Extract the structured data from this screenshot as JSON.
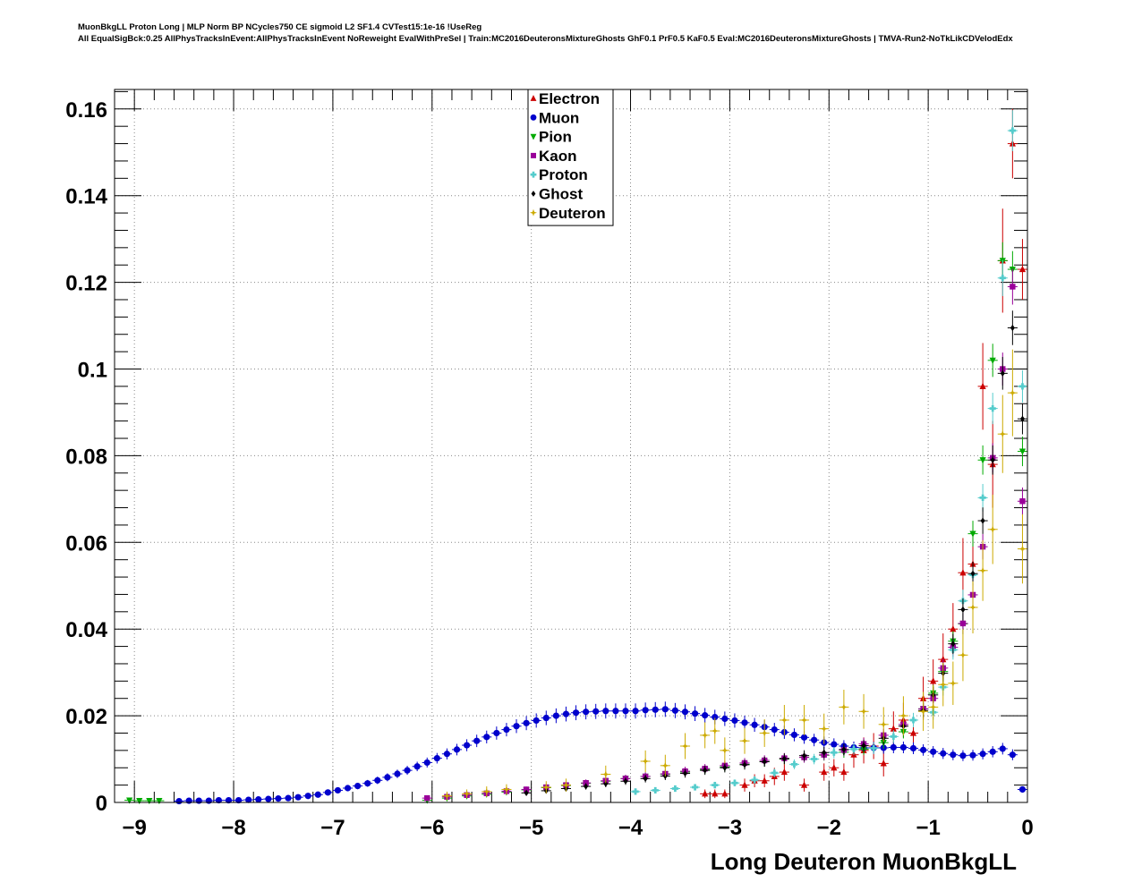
{
  "header": {
    "line1": "MuonBkgLL Proton Long | MLP Norm BP NCycles750 CE sigmoid L2 SF1.4 CVTest15:1e-16 !UseReg",
    "line2": "All EqualSigBck:0.25 AllPhysTracksInEvent:AllPhysTracksInEvent NoReweight EvalWithPreSel | Train:MC2016DeuteronsMixtureGhosts GhF0.1 PrF0.5 KaF0.5 Eval:MC2016DeuteronsMixtureGhosts | TMVA-Run2-NoTkLikCDVelodEdx"
  },
  "chart_data": {
    "type": "scatter",
    "title": "",
    "xlabel": "Long Deuteron MuonBkgLL",
    "ylabel": "",
    "xlim": [
      -9.2,
      0
    ],
    "ylim": [
      0,
      0.1645
    ],
    "grid": true,
    "legend_position": "top-center",
    "x_ticks": [
      -9,
      -8,
      -7,
      -6,
      -5,
      -4,
      -3,
      -2,
      -1,
      0
    ],
    "x_tick_labels": [
      "−9",
      "−8",
      "−7",
      "−6",
      "−5",
      "−4",
      "−3",
      "−2",
      "−1",
      "0"
    ],
    "y_ticks": [
      0,
      0.02,
      0.04,
      0.06,
      0.08,
      0.1,
      0.12,
      0.14,
      0.16
    ],
    "y_tick_labels": [
      "0",
      "0.02",
      "0.04",
      "0.06",
      "0.08",
      "0.1",
      "0.12",
      "0.14",
      "0.16"
    ],
    "series": [
      {
        "name": "Electron",
        "color": "#cc0000",
        "marker": "triangle-up",
        "x": [
          -3.25,
          -3.15,
          -3.05,
          -2.85,
          -2.75,
          -2.65,
          -2.55,
          -2.45,
          -2.25,
          -2.05,
          -1.95,
          -1.85,
          -1.75,
          -1.65,
          -1.55,
          -1.45,
          -1.35,
          -1.25,
          -1.15,
          -1.05,
          -0.95,
          -0.85,
          -0.75,
          -0.65,
          -0.55,
          -0.45,
          -0.35,
          -0.25,
          -0.15,
          -0.05
        ],
        "y": [
          0.002,
          0.002,
          0.002,
          0.004,
          0.005,
          0.005,
          0.006,
          0.007,
          0.004,
          0.007,
          0.008,
          0.007,
          0.011,
          0.012,
          0.013,
          0.009,
          0.017,
          0.019,
          0.016,
          0.024,
          0.028,
          0.033,
          0.04,
          0.053,
          0.055,
          0.096,
          0.078,
          0.125,
          0.152,
          0.123
        ],
        "err": [
          0.001,
          0.001,
          0.001,
          0.0015,
          0.0015,
          0.0015,
          0.002,
          0.002,
          0.0015,
          0.002,
          0.002,
          0.002,
          0.003,
          0.003,
          0.003,
          0.003,
          0.004,
          0.004,
          0.004,
          0.005,
          0.005,
          0.006,
          0.006,
          0.008,
          0.008,
          0.01,
          0.01,
          0.012,
          0.008,
          0.007
        ]
      },
      {
        "name": "Muon",
        "color": "#0000cc",
        "marker": "circle",
        "x": [
          -8.55,
          -8.45,
          -8.35,
          -8.25,
          -8.15,
          -8.05,
          -7.95,
          -7.85,
          -7.75,
          -7.65,
          -7.55,
          -7.45,
          -7.35,
          -7.25,
          -7.15,
          -7.05,
          -6.95,
          -6.85,
          -6.75,
          -6.65,
          -6.55,
          -6.45,
          -6.35,
          -6.25,
          -6.15,
          -6.05,
          -5.95,
          -5.85,
          -5.75,
          -5.65,
          -5.55,
          -5.45,
          -5.35,
          -5.25,
          -5.15,
          -5.05,
          -4.95,
          -4.85,
          -4.75,
          -4.65,
          -4.55,
          -4.45,
          -4.35,
          -4.25,
          -4.15,
          -4.05,
          -3.95,
          -3.85,
          -3.75,
          -3.65,
          -3.55,
          -3.45,
          -3.35,
          -3.25,
          -3.15,
          -3.05,
          -2.95,
          -2.85,
          -2.75,
          -2.65,
          -2.55,
          -2.45,
          -2.35,
          -2.25,
          -2.15,
          -2.05,
          -1.95,
          -1.85,
          -1.75,
          -1.65,
          -1.55,
          -1.45,
          -1.35,
          -1.25,
          -1.15,
          -1.05,
          -0.95,
          -0.85,
          -0.75,
          -0.65,
          -0.55,
          -0.45,
          -0.35,
          -0.25,
          -0.15,
          -0.05
        ],
        "y": [
          0.0003,
          0.0004,
          0.0004,
          0.0004,
          0.0005,
          0.0005,
          0.0005,
          0.0006,
          0.0007,
          0.0008,
          0.0009,
          0.001,
          0.0012,
          0.0015,
          0.0018,
          0.0023,
          0.0028,
          0.0033,
          0.0038,
          0.0044,
          0.0051,
          0.0058,
          0.0066,
          0.0074,
          0.0083,
          0.0092,
          0.0102,
          0.0112,
          0.0122,
          0.0132,
          0.0142,
          0.0151,
          0.016,
          0.0168,
          0.0176,
          0.0183,
          0.0189,
          0.0195,
          0.02,
          0.0204,
          0.0207,
          0.0209,
          0.021,
          0.0211,
          0.0211,
          0.0211,
          0.0211,
          0.0213,
          0.0214,
          0.0215,
          0.0212,
          0.0209,
          0.0205,
          0.0201,
          0.0197,
          0.0193,
          0.0189,
          0.0184,
          0.0179,
          0.0174,
          0.0168,
          0.0162,
          0.0156,
          0.015,
          0.0144,
          0.0138,
          0.0134,
          0.013,
          0.0127,
          0.0126,
          0.0126,
          0.0126,
          0.0127,
          0.0127,
          0.0125,
          0.0121,
          0.0117,
          0.0113,
          0.011,
          0.0108,
          0.0109,
          0.0112,
          0.0117,
          0.0124,
          0.011,
          0.003
        ],
        "err": []
      },
      {
        "name": "Pion",
        "color": "#00aa00",
        "marker": "triangle-down",
        "x": [
          -9.05,
          -8.95,
          -8.85,
          -8.75,
          -6.05,
          -5.85,
          -5.65,
          -5.45,
          -5.25,
          -5.05,
          -4.85,
          -4.65,
          -4.45,
          -4.25,
          -4.05,
          -3.85,
          -3.65,
          -3.45,
          -3.25,
          -3.05,
          -2.85,
          -2.65,
          -2.45,
          -2.25,
          -2.05,
          -1.85,
          -1.65,
          -1.45,
          -1.25,
          -1.05,
          -0.95,
          -0.85,
          -0.75,
          -0.65,
          -0.55,
          -0.45,
          -0.35,
          -0.25,
          -0.15,
          -0.05
        ],
        "y": [
          0.0005,
          0.0004,
          0.0004,
          0.0004,
          0.0005,
          0.001,
          0.0015,
          0.0019,
          0.0024,
          0.0029,
          0.0034,
          0.0039,
          0.0044,
          0.0049,
          0.0055,
          0.006,
          0.0065,
          0.007,
          0.0076,
          0.0082,
          0.0088,
          0.0094,
          0.01,
          0.0104,
          0.0109,
          0.0116,
          0.0123,
          0.0138,
          0.0163,
          0.0216,
          0.0252,
          0.0302,
          0.0372,
          0.0412,
          0.062,
          0.079,
          0.102,
          0.125,
          0.123,
          0.081
        ],
        "err": []
      },
      {
        "name": "Kaon",
        "color": "#990099",
        "marker": "square",
        "x": [
          -6.05,
          -5.85,
          -5.65,
          -5.45,
          -5.25,
          -5.05,
          -4.85,
          -4.65,
          -4.45,
          -4.25,
          -4.05,
          -3.85,
          -3.65,
          -3.45,
          -3.25,
          -3.05,
          -2.85,
          -2.65,
          -2.45,
          -2.25,
          -2.05,
          -1.85,
          -1.65,
          -1.45,
          -1.25,
          -1.05,
          -0.95,
          -0.85,
          -0.75,
          -0.65,
          -0.55,
          -0.45,
          -0.35,
          -0.25,
          -0.15,
          -0.05
        ],
        "y": [
          0.001,
          0.0013,
          0.0017,
          0.0021,
          0.0026,
          0.003,
          0.0035,
          0.004,
          0.0045,
          0.005,
          0.0055,
          0.006,
          0.0066,
          0.0072,
          0.0078,
          0.0085,
          0.0091,
          0.0097,
          0.0102,
          0.0104,
          0.011,
          0.0121,
          0.0135,
          0.0155,
          0.018,
          0.0216,
          0.024,
          0.031,
          0.0358,
          0.0413,
          0.0479,
          0.059,
          0.0795,
          0.1,
          0.119,
          0.0695
        ],
        "err": []
      },
      {
        "name": "Proton",
        "color": "#55cccc",
        "marker": "cross",
        "x": [
          -3.95,
          -3.75,
          -3.55,
          -3.35,
          -3.15,
          -2.95,
          -2.75,
          -2.55,
          -2.35,
          -2.15,
          -1.95,
          -1.75,
          -1.55,
          -1.35,
          -1.15,
          -0.95,
          -0.85,
          -0.75,
          -0.65,
          -0.55,
          -0.45,
          -0.35,
          -0.25,
          -0.15,
          -0.05
        ],
        "y": [
          0.0025,
          0.0028,
          0.0032,
          0.0035,
          0.004,
          0.0045,
          0.0052,
          0.0068,
          0.0088,
          0.01,
          0.0115,
          0.0123,
          0.0125,
          0.0152,
          0.019,
          0.0208,
          0.0266,
          0.0352,
          0.0465,
          0.0525,
          0.0703,
          0.0909,
          0.121,
          0.155,
          0.096
        ],
        "err": []
      },
      {
        "name": "Ghost",
        "color": "#000000",
        "marker": "diamond",
        "x": [
          -5.05,
          -4.85,
          -4.65,
          -4.45,
          -4.25,
          -4.05,
          -3.85,
          -3.65,
          -3.45,
          -3.25,
          -3.05,
          -2.85,
          -2.65,
          -2.45,
          -2.25,
          -2.05,
          -1.85,
          -1.65,
          -1.45,
          -1.25,
          -1.05,
          -0.95,
          -0.85,
          -0.75,
          -0.65,
          -0.55,
          -0.45,
          -0.35,
          -0.25,
          -0.15,
          -0.05
        ],
        "y": [
          0.0022,
          0.0027,
          0.0032,
          0.0037,
          0.0043,
          0.0049,
          0.0055,
          0.0061,
          0.0067,
          0.0074,
          0.008,
          0.0087,
          0.0094,
          0.0101,
          0.0108,
          0.0115,
          0.0122,
          0.0131,
          0.0148,
          0.0176,
          0.0212,
          0.0248,
          0.0298,
          0.0366,
          0.0445,
          0.0528,
          0.065,
          0.079,
          0.099,
          0.1095,
          0.0885
        ],
        "err": []
      },
      {
        "name": "Deuteron",
        "color": "#ccaa00",
        "marker": "star",
        "x": [
          -5.85,
          -5.65,
          -5.45,
          -5.25,
          -4.85,
          -4.65,
          -4.25,
          -3.85,
          -3.65,
          -3.45,
          -3.25,
          -3.15,
          -3.05,
          -2.85,
          -2.65,
          -2.45,
          -2.25,
          -2.05,
          -1.85,
          -1.65,
          -1.45,
          -1.25,
          -1.05,
          -0.95,
          -0.85,
          -0.75,
          -0.65,
          -0.55,
          -0.45,
          -0.35,
          -0.25,
          -0.15,
          -0.05
        ],
        "y": [
          0.0015,
          0.002,
          0.0025,
          0.003,
          0.0035,
          0.004,
          0.0065,
          0.0095,
          0.0085,
          0.013,
          0.0155,
          0.0165,
          0.012,
          0.0142,
          0.016,
          0.019,
          0.019,
          0.017,
          0.022,
          0.021,
          0.018,
          0.02,
          0.021,
          0.022,
          0.0272,
          0.0275,
          0.034,
          0.045,
          0.0535,
          0.063,
          0.085,
          0.0945,
          0.0585
        ],
        "err": [
          0.001,
          0.001,
          0.0012,
          0.0012,
          0.0014,
          0.0015,
          0.002,
          0.0025,
          0.0025,
          0.003,
          0.003,
          0.003,
          0.003,
          0.003,
          0.0032,
          0.0035,
          0.0035,
          0.0035,
          0.004,
          0.004,
          0.004,
          0.0045,
          0.0045,
          0.005,
          0.005,
          0.005,
          0.006,
          0.006,
          0.007,
          0.008,
          0.009,
          0.01,
          0.008
        ]
      }
    ]
  }
}
